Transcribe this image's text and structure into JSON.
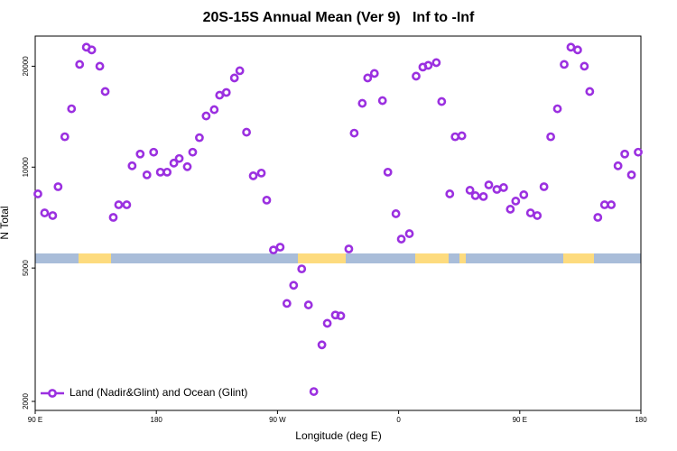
{
  "chart_data": {
    "type": "scatter",
    "title": "20S-15S Annual Mean (Ver 9)   Inf to -Inf",
    "xlabel": "Longitude (deg E)",
    "ylabel": "N Total",
    "xlim": [
      90,
      540
    ],
    "xticks": [
      {
        "value": 90,
        "label": "90 E"
      },
      {
        "value": 180,
        "label": "180"
      },
      {
        "value": 270,
        "label": "90 W"
      },
      {
        "value": 360,
        "label": "0"
      },
      {
        "value": 450,
        "label": "90 E"
      },
      {
        "value": 540,
        "label": "180"
      }
    ],
    "ylim": [
      1880,
      24600
    ],
    "yticks": [
      2000,
      5000,
      10000,
      20000
    ],
    "ylog": true,
    "legend": "bottom-left",
    "series": [
      {
        "name": "Land (Nadir&Glint) and Ocean (Glint)",
        "color": "#9b30e0",
        "x": [
          92,
          97,
          103,
          107,
          112,
          117,
          123,
          128,
          132,
          138,
          142,
          148,
          152,
          158,
          162,
          168,
          173,
          178,
          183,
          188,
          193,
          197,
          203,
          207,
          212,
          217,
          223,
          227,
          232,
          238,
          242,
          247,
          252,
          258,
          262,
          267,
          272,
          277,
          282,
          288,
          293,
          297,
          303,
          307,
          313,
          317,
          323,
          327,
          333,
          337,
          342,
          348,
          352,
          358,
          362,
          368,
          373,
          378,
          382,
          388,
          392,
          398,
          402,
          407,
          413,
          417,
          423,
          427,
          433,
          438,
          443,
          447,
          453,
          458,
          463,
          468,
          473,
          478,
          483,
          488,
          493,
          498,
          502,
          508,
          513,
          518,
          523,
          528,
          533,
          538
        ],
        "values": [
          8320,
          7300,
          7170,
          8740,
          12320,
          14930,
          20250,
          22790,
          22370,
          20000,
          16810,
          7080,
          7720,
          7720,
          10090,
          10940,
          9480,
          11080,
          9660,
          9660,
          10280,
          10610,
          10030,
          11080,
          12240,
          14210,
          14840,
          16390,
          16700,
          18450,
          19390,
          12710,
          9420,
          9600,
          7970,
          5660,
          5770,
          3920,
          4440,
          4970,
          3880,
          2140,
          2950,
          3420,
          3620,
          3600,
          5700,
          12630,
          15500,
          18450,
          19030,
          15790,
          9660,
          7260,
          6100,
          6330,
          18680,
          19880,
          20120,
          20500,
          15690,
          8320,
          12320,
          12400,
          8530,
          8220,
          8170,
          8850,
          8580,
          8690,
          7490,
          7920,
          8270,
          7300,
          7170,
          8740,
          12320,
          14930,
          20250,
          22790,
          22370,
          20000,
          16810,
          7080,
          7720,
          7720,
          10090,
          10940,
          9480,
          11080
        ]
      }
    ]
  }
}
